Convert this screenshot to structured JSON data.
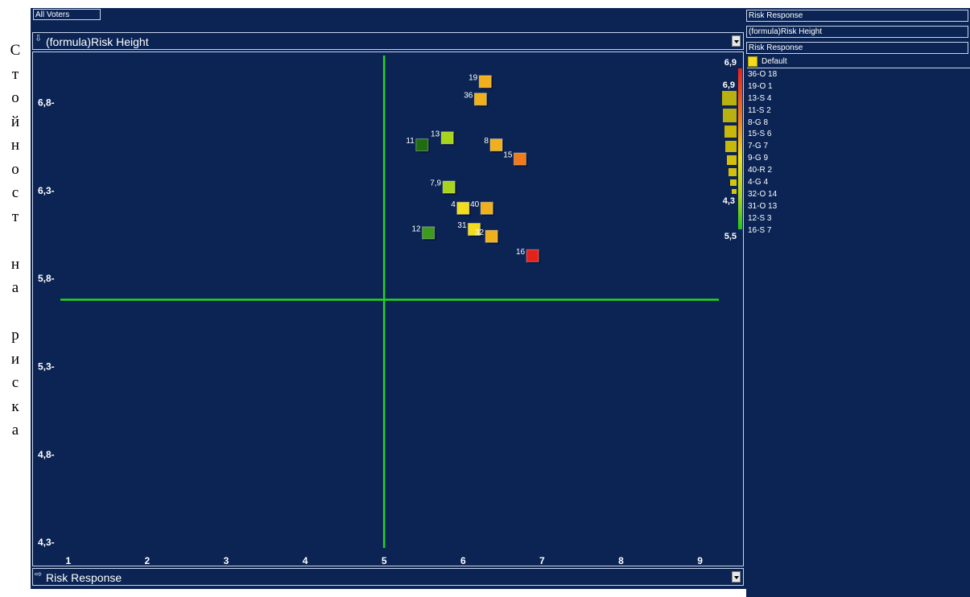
{
  "vertical_label": "Стойност на риска",
  "header": {
    "all_voters": "All Voters"
  },
  "y_selector": {
    "label": "(formula)Risk Height"
  },
  "x_selector": {
    "label": "Risk Response"
  },
  "right_panel": {
    "box1": "Risk Response",
    "box2": "(formula)Risk Height",
    "box3": "Risk Response",
    "legend_default": "Default",
    "items": [
      "36-O 18",
      "19-O 1",
      "13-S 4",
      "11-S 2",
      "8-G 8",
      "15-S 6",
      "7-G 7",
      "9-G 9",
      "40-R 2",
      "4-G 4",
      "32-O 14",
      "31-O 13",
      "12-S 3",
      "16-S 7"
    ]
  },
  "colors": {
    "background": "#0b2454",
    "crosshair": "#22d622",
    "red": "#e8201c",
    "orange": "#f07a1c",
    "amber": "#f0b01c",
    "yellow": "#f2dc1c",
    "lime": "#a8d41c",
    "green": "#3c9a1c",
    "darkgreen": "#1e6e10"
  },
  "chart_data": {
    "type": "scatter",
    "xlim": [
      0.9,
      9.3
    ],
    "ylim": [
      4.25,
      7.05
    ],
    "x_ticks": [
      "1",
      "2",
      "3",
      "4",
      "5",
      "6",
      "7",
      "8",
      "9"
    ],
    "y_ticks": [
      "6,8",
      "6,3",
      "5,8",
      "5,3",
      "4,8",
      "4,3"
    ],
    "crosshair": {
      "x": 5,
      "y": 5.68
    },
    "points": [
      {
        "label": "19",
        "x": 6.28,
        "y": 6.92,
        "color": "amber"
      },
      {
        "label": "36",
        "x": 6.22,
        "y": 6.82,
        "color": "amber"
      },
      {
        "label": "13",
        "x": 5.8,
        "y": 6.6,
        "color": "lime"
      },
      {
        "label": "11",
        "x": 5.48,
        "y": 6.56,
        "color": "darkgreen"
      },
      {
        "label": "8",
        "x": 6.42,
        "y": 6.56,
        "color": "amber"
      },
      {
        "label": "15",
        "x": 6.72,
        "y": 6.48,
        "color": "orange"
      },
      {
        "label": "7,9",
        "x": 5.82,
        "y": 6.32,
        "color": "lime"
      },
      {
        "label": "4",
        "x": 6.0,
        "y": 6.2,
        "color": "yellow"
      },
      {
        "label": "40",
        "x": 6.3,
        "y": 6.2,
        "color": "amber"
      },
      {
        "label": "31",
        "x": 6.14,
        "y": 6.08,
        "color": "yellow"
      },
      {
        "label": "12",
        "x": 5.56,
        "y": 6.06,
        "color": "green"
      },
      {
        "label": "32",
        "x": 6.36,
        "y": 6.04,
        "color": "amber"
      },
      {
        "label": "16",
        "x": 6.88,
        "y": 5.93,
        "color": "red"
      }
    ],
    "color_scale": {
      "top": "6,9",
      "bottom": "5,5"
    },
    "size_scale": {
      "top": "6,9",
      "bottom": "4,3",
      "steps": 8
    }
  }
}
